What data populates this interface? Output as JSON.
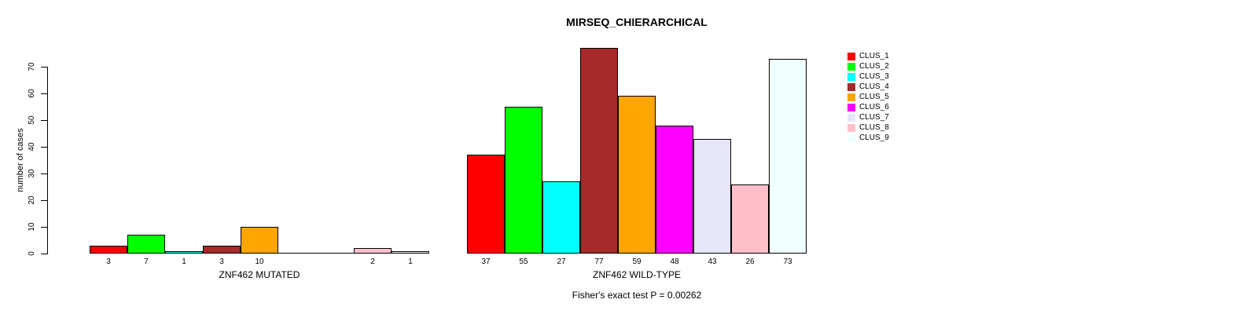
{
  "chart_data": {
    "type": "bar",
    "title": "MIRSEQ_CHIERARCHICAL",
    "ylabel": "number of cases",
    "xlabel": "",
    "yticks": [
      0,
      10,
      20,
      30,
      40,
      50,
      60,
      70
    ],
    "ylim": [
      0,
      77
    ],
    "grid": false,
    "legend_position": "right",
    "footnote": "Fisher's exact test P = 0.00262",
    "categories": [
      "CLUS_1",
      "CLUS_2",
      "CLUS_3",
      "CLUS_4",
      "CLUS_5",
      "CLUS_6",
      "CLUS_7",
      "CLUS_8",
      "CLUS_9"
    ],
    "colors": [
      "#FF0000",
      "#00FF00",
      "#00FFFF",
      "#A52A2A",
      "#FFA500",
      "#FF00FF",
      "#E6E6FA",
      "#FFC0CB",
      "#F0FFFF"
    ],
    "series": [
      {
        "name": "ZNF462 MUTATED",
        "values": [
          3,
          7,
          1,
          3,
          10,
          0,
          0,
          2,
          1
        ]
      },
      {
        "name": "ZNF462 WILD-TYPE",
        "values": [
          37,
          55,
          27,
          77,
          59,
          48,
          43,
          26,
          73
        ]
      }
    ],
    "bar_value_labels_shown_for_nonzero_only": true
  },
  "legend": {
    "entries": [
      {
        "label": "CLUS_1",
        "color": "#FF0000"
      },
      {
        "label": "CLUS_2",
        "color": "#00FF00"
      },
      {
        "label": "CLUS_3",
        "color": "#00FFFF"
      },
      {
        "label": "CLUS_4",
        "color": "#A52A2A"
      },
      {
        "label": "CLUS_5",
        "color": "#FFA500"
      },
      {
        "label": "CLUS_6",
        "color": "#FF00FF"
      },
      {
        "label": "CLUS_7",
        "color": "#E6E6FA"
      },
      {
        "label": "CLUS_8",
        "color": "#FFC0CB"
      },
      {
        "label": "CLUS_9",
        "color": "#F0FFFF"
      }
    ]
  }
}
